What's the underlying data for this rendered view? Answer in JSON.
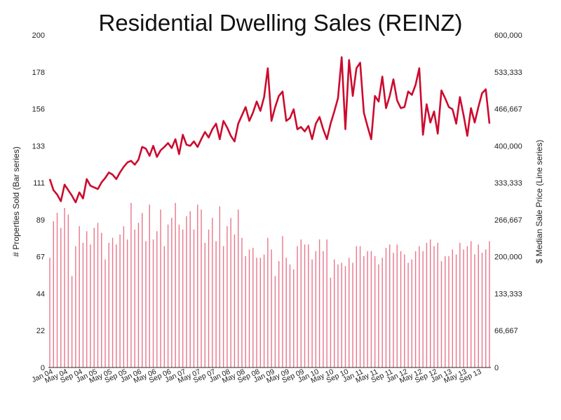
{
  "chart_data": {
    "type": "bar+line",
    "title": "Residential Dwelling Sales (REINZ)",
    "ylabel_left": "# Properties Sold (Bar series)",
    "ylabel_right": "$ Median Sale Price (Line series)",
    "y_left_ticks": [
      "0",
      "22",
      "44",
      "67",
      "89",
      "111",
      "133",
      "156",
      "178",
      "200"
    ],
    "y_right_ticks": [
      "0",
      "66,667",
      "133,333",
      "200,000",
      "266,667",
      "333,333",
      "400,000",
      "466,667",
      "533,333",
      "600,000"
    ],
    "ylim_left": [
      0,
      200
    ],
    "ylim_right": [
      0,
      600000
    ],
    "x_tick_labels": [
      "Jan 04",
      "May 04",
      "Sep 04",
      "Jan 05",
      "May 05",
      "Sep 05",
      "Jan 06",
      "May 06",
      "Sep 06",
      "Jan 07",
      "May 07",
      "Sep 07",
      "Jan 08",
      "May 08",
      "Sep 08",
      "Jan 09",
      "May 09",
      "Sep 09",
      "Jan 10",
      "May 10",
      "Sep 10",
      "Jan 11",
      "May 11",
      "Sep 11",
      "Jan 12",
      "May 12",
      "Sep 12",
      "Jan 13",
      "May 13",
      "Sep 13"
    ],
    "colors": {
      "bar": "#e8768a",
      "line": "#cc0a2e",
      "axis": "#222222"
    },
    "series": [
      {
        "name": "# Properties Sold (Bar series)",
        "kind": "bar",
        "values": [
          66,
          88,
          93,
          84,
          96,
          92,
          55,
          73,
          85,
          75,
          82,
          74,
          84,
          87,
          81,
          65,
          75,
          78,
          74,
          80,
          85,
          77,
          99,
          83,
          87,
          93,
          76,
          98,
          77,
          82,
          95,
          73,
          86,
          90,
          99,
          86,
          83,
          91,
          94,
          83,
          98,
          95,
          75,
          83,
          90,
          76,
          97,
          73,
          85,
          90,
          80,
          95,
          78,
          67,
          71,
          72,
          66,
          66,
          68,
          78,
          71,
          55,
          64,
          79,
          66,
          62,
          59,
          73,
          77,
          74,
          74,
          65,
          70,
          77,
          70,
          77,
          54,
          65,
          62,
          63,
          61,
          66,
          63,
          73,
          73,
          67,
          70,
          70,
          67,
          62,
          66,
          72,
          74,
          69,
          74,
          70,
          68,
          63,
          65,
          70,
          73,
          70,
          75,
          77,
          73,
          75,
          64,
          67,
          67,
          71,
          68,
          75,
          71,
          73,
          76,
          68,
          74,
          69,
          71,
          76
        ],
        "values_note": "Bar heights were read off the picture as one value per month, Jan 04 to Dec 13 (120 values)."
      },
      {
        "name": "$ Median Sale Price (Line series)",
        "kind": "line",
        "values": [
          340000,
          320000,
          312000,
          300000,
          330000,
          320000,
          310000,
          298000,
          316000,
          305000,
          340000,
          328000,
          325000,
          322000,
          334000,
          342000,
          352000,
          348000,
          340000,
          352000,
          362000,
          370000,
          373000,
          366000,
          375000,
          398000,
          395000,
          382000,
          400000,
          380000,
          392000,
          398000,
          405000,
          396000,
          412000,
          385000,
          420000,
          402000,
          400000,
          408000,
          398000,
          412000,
          425000,
          415000,
          430000,
          440000,
          412000,
          445000,
          433000,
          418000,
          408000,
          440000,
          455000,
          470000,
          445000,
          460000,
          480000,
          463000,
          488000,
          540000,
          445000,
          470000,
          490000,
          498000,
          445000,
          450000,
          466000,
          430000,
          434000,
          426000,
          436000,
          412000,
          440000,
          452000,
          430000,
          412000,
          440000,
          462000,
          486000,
          560000,
          430000,
          555000,
          490000,
          540000,
          550000,
          460000,
          435000,
          412000,
          490000,
          480000,
          525000,
          468000,
          490000,
          520000,
          482000,
          468000,
          470000,
          498000,
          492000,
          510000,
          540000,
          420000,
          475000,
          442000,
          462000,
          422000,
          500000,
          486000,
          470000,
          466000,
          440000,
          488000,
          455000,
          418000,
          468000,
          442000,
          470000,
          495000,
          502000,
          440000
        ],
        "values_note": "One value per month, Jan 04 to Dec 13 (120 values)."
      }
    ],
    "grid": false,
    "legend": "none"
  }
}
